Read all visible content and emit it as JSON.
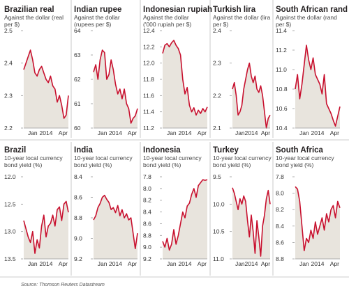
{
  "source": "Source: Thomson Reuters Datastream",
  "colors": {
    "line": "#c8102e",
    "fill": "#e8e4dd",
    "divider": "#bdbdbd",
    "tick": "#9a9a9a"
  },
  "chart_data": [
    {
      "type": "area",
      "title": "Brazilian real",
      "subtitle": [
        "Against the dollar (real",
        "per $)"
      ],
      "ylim": [
        2.5,
        2.2
      ],
      "yticks": [
        "2.2",
        "2.3",
        "2.4",
        "2.5"
      ],
      "ytick_values": [
        2.2,
        2.3,
        2.4,
        2.5
      ],
      "xticks": [
        "Jan",
        "2014",
        "Apr"
      ],
      "x": [
        0,
        0.05,
        0.1,
        0.15,
        0.2,
        0.25,
        0.3,
        0.35,
        0.4,
        0.45,
        0.5,
        0.55,
        0.6,
        0.65,
        0.7,
        0.75,
        0.8,
        0.85,
        0.9,
        0.95,
        1
      ],
      "values": [
        2.38,
        2.4,
        2.42,
        2.44,
        2.41,
        2.37,
        2.36,
        2.38,
        2.39,
        2.37,
        2.35,
        2.34,
        2.36,
        2.33,
        2.32,
        2.28,
        2.3,
        2.27,
        2.23,
        2.24,
        2.3
      ]
    },
    {
      "type": "area",
      "title": "Indian rupee",
      "subtitle": [
        "Against the dollar",
        "(rupees per $)"
      ],
      "ylim": [
        64,
        60
      ],
      "yticks": [
        "60",
        "61",
        "62",
        "63",
        "64"
      ],
      "ytick_values": [
        60,
        61,
        62,
        63,
        64
      ],
      "xticks": [
        "Jan",
        "2014",
        "Apr"
      ],
      "x": [
        0,
        0.05,
        0.1,
        0.15,
        0.2,
        0.25,
        0.3,
        0.35,
        0.4,
        0.45,
        0.5,
        0.55,
        0.6,
        0.65,
        0.7,
        0.75,
        0.8,
        0.85,
        0.9,
        0.95,
        1
      ],
      "values": [
        62.3,
        62.6,
        62.0,
        62.8,
        63.2,
        63.1,
        62.0,
        62.2,
        62.8,
        62.4,
        61.8,
        61.4,
        61.6,
        61.2,
        61.6,
        61.0,
        60.8,
        60.2,
        60.4,
        60.5,
        60.8
      ]
    },
    {
      "type": "area",
      "title": "Indonesian rupiah",
      "subtitle": [
        "Against the dollar",
        "('000 rupiah per $)"
      ],
      "ylim": [
        12.4,
        11.2
      ],
      "yticks": [
        "11.2",
        "11.4",
        "11.6",
        "11.8",
        "12.0",
        "12.2",
        "12.4"
      ],
      "ytick_values": [
        11.2,
        11.4,
        11.6,
        11.8,
        12.0,
        12.2,
        12.4
      ],
      "xticks": [
        "Jan",
        "2014",
        "Apr"
      ],
      "x": [
        0,
        0.05,
        0.1,
        0.15,
        0.2,
        0.25,
        0.3,
        0.35,
        0.4,
        0.45,
        0.5,
        0.55,
        0.6,
        0.65,
        0.7,
        0.75,
        0.8,
        0.85,
        0.9,
        0.95,
        1
      ],
      "values": [
        12.12,
        12.22,
        12.24,
        12.2,
        12.25,
        12.28,
        12.22,
        12.18,
        12.1,
        11.8,
        11.62,
        11.7,
        11.48,
        11.4,
        11.45,
        11.36,
        11.42,
        11.38,
        11.44,
        11.4,
        11.46
      ]
    },
    {
      "type": "area",
      "title": "Turkish lira",
      "subtitle": [
        "Against the dollar (lira",
        "per $)"
      ],
      "ylim": [
        2.4,
        2.1
      ],
      "yticks": [
        "2.1",
        "2.2",
        "2.3",
        "2.4"
      ],
      "ytick_values": [
        2.1,
        2.2,
        2.3,
        2.4
      ],
      "xticks": [
        "Jan",
        "2014",
        "Apr"
      ],
      "x": [
        0,
        0.05,
        0.1,
        0.15,
        0.2,
        0.25,
        0.3,
        0.35,
        0.4,
        0.45,
        0.5,
        0.55,
        0.6,
        0.65,
        0.7,
        0.75,
        0.8,
        0.85,
        0.9,
        0.95,
        1
      ],
      "values": [
        2.22,
        2.24,
        2.2,
        2.14,
        2.15,
        2.17,
        2.22,
        2.25,
        2.28,
        2.3,
        2.26,
        2.24,
        2.26,
        2.22,
        2.21,
        2.23,
        2.2,
        2.15,
        2.1,
        2.13,
        2.14
      ]
    },
    {
      "type": "area",
      "title": "South African rand",
      "subtitle": [
        "Against the dollar (rand",
        "per $)"
      ],
      "ylim": [
        11.4,
        10.4
      ],
      "yticks": [
        "10.4",
        "10.6",
        "10.8",
        "11.0",
        "11.2",
        "11.4"
      ],
      "ytick_values": [
        10.4,
        10.6,
        10.8,
        11.0,
        11.2,
        11.4
      ],
      "xticks": [
        "Jan",
        "2014",
        "Apr"
      ],
      "x": [
        0,
        0.05,
        0.1,
        0.15,
        0.2,
        0.25,
        0.3,
        0.35,
        0.4,
        0.45,
        0.5,
        0.55,
        0.6,
        0.65,
        0.7,
        0.75,
        0.8,
        0.85,
        0.9,
        0.95,
        1
      ],
      "values": [
        10.8,
        10.95,
        10.7,
        10.85,
        11.05,
        11.25,
        11.1,
        11.0,
        11.12,
        10.95,
        10.9,
        10.85,
        10.75,
        10.95,
        10.65,
        10.6,
        10.55,
        10.48,
        10.42,
        10.52,
        10.62
      ]
    },
    {
      "type": "area",
      "title": "Brazil",
      "subtitle": [
        "10-year local currency",
        "bond yield (%)"
      ],
      "ylim": [
        12.0,
        13.5
      ],
      "yticks": [
        "12.0",
        "12.5",
        "13.0",
        "13.5"
      ],
      "ytick_values": [
        12.0,
        12.5,
        13.0,
        13.5
      ],
      "xticks": [
        "Jan",
        "2014",
        "Apr"
      ],
      "x": [
        0,
        0.05,
        0.1,
        0.15,
        0.2,
        0.25,
        0.3,
        0.35,
        0.4,
        0.45,
        0.5,
        0.55,
        0.6,
        0.65,
        0.7,
        0.75,
        0.8,
        0.85,
        0.9,
        0.95,
        1
      ],
      "values": [
        12.8,
        12.95,
        13.1,
        13.2,
        13.0,
        13.4,
        13.15,
        13.3,
        12.9,
        12.7,
        13.1,
        12.9,
        12.85,
        12.7,
        12.9,
        12.6,
        12.55,
        12.8,
        12.5,
        12.45,
        12.65
      ]
    },
    {
      "type": "area",
      "title": "India",
      "subtitle": [
        "10-year local currency",
        "bond yield (%)"
      ],
      "ylim": [
        8.4,
        9.2
      ],
      "yticks": [
        "8.4",
        "8.6",
        "8.8",
        "9.0",
        "9.2"
      ],
      "ytick_values": [
        8.4,
        8.6,
        8.8,
        9.0,
        9.2
      ],
      "xticks": [
        "Jan",
        "2014",
        "Apr"
      ],
      "x": [
        0,
        0.05,
        0.1,
        0.15,
        0.2,
        0.25,
        0.3,
        0.35,
        0.4,
        0.45,
        0.5,
        0.55,
        0.6,
        0.65,
        0.7,
        0.75,
        0.8,
        0.85,
        0.9,
        0.95,
        1
      ],
      "values": [
        8.82,
        8.78,
        8.7,
        8.66,
        8.6,
        8.58,
        8.62,
        8.65,
        8.72,
        8.7,
        8.75,
        8.68,
        8.78,
        8.72,
        8.8,
        8.76,
        8.82,
        8.8,
        8.95,
        9.1,
        8.95
      ]
    },
    {
      "type": "area",
      "title": "Indonesia",
      "subtitle": [
        "10-year local currency",
        "bond yield (%)"
      ],
      "ylim": [
        7.8,
        9.2
      ],
      "yticks": [
        "7.8",
        "8.0",
        "8.2",
        "8.4",
        "8.6",
        "8.8",
        "9.0",
        "9.2"
      ],
      "ytick_values": [
        7.8,
        8.0,
        8.2,
        8.4,
        8.6,
        8.8,
        9.0,
        9.2
      ],
      "xticks": [
        "Jan",
        "2014",
        "Apr"
      ],
      "x": [
        0,
        0.05,
        0.1,
        0.15,
        0.2,
        0.25,
        0.3,
        0.35,
        0.4,
        0.45,
        0.5,
        0.55,
        0.6,
        0.65,
        0.7,
        0.75,
        0.8,
        0.85,
        0.9,
        0.95,
        1
      ],
      "values": [
        8.9,
        9.0,
        8.85,
        9.05,
        8.95,
        8.7,
        8.95,
        8.8,
        8.6,
        8.4,
        8.5,
        8.3,
        8.25,
        8.1,
        8.0,
        8.15,
        7.95,
        7.9,
        7.85,
        7.86,
        7.85
      ]
    },
    {
      "type": "area",
      "title": "Turkey",
      "subtitle": [
        "10-year local currency",
        "bond yield (%)"
      ],
      "ylim": [
        9.5,
        11.0
      ],
      "yticks": [
        "9.5",
        "10.0",
        "10.5",
        "11.0"
      ],
      "ytick_values": [
        9.5,
        10.0,
        10.5,
        11.0
      ],
      "xticks": [
        "Jan",
        "2014",
        "Apr"
      ],
      "x": [
        0,
        0.05,
        0.1,
        0.15,
        0.2,
        0.25,
        0.3,
        0.35,
        0.4,
        0.45,
        0.5,
        0.55,
        0.6,
        0.65,
        0.7,
        0.75,
        0.8,
        0.85,
        0.9,
        0.95,
        1
      ],
      "values": [
        9.7,
        9.8,
        9.95,
        10.1,
        9.9,
        10.0,
        9.85,
        9.95,
        10.3,
        10.6,
        10.2,
        10.5,
        10.9,
        10.3,
        10.6,
        10.95,
        10.4,
        10.2,
        9.9,
        9.75,
        10.0
      ]
    },
    {
      "type": "area",
      "title": "South Africa",
      "subtitle": [
        "10-year local currency",
        "bond yield (%)"
      ],
      "ylim": [
        7.8,
        8.8
      ],
      "yticks": [
        "7.8",
        "8.0",
        "8.2",
        "8.4",
        "8.6",
        "8.8"
      ],
      "ytick_values": [
        7.8,
        8.0,
        8.2,
        8.4,
        8.6,
        8.8
      ],
      "xticks": [
        "Jan",
        "2014",
        "Apr"
      ],
      "x": [
        0,
        0.05,
        0.1,
        0.15,
        0.2,
        0.25,
        0.3,
        0.35,
        0.4,
        0.45,
        0.5,
        0.55,
        0.6,
        0.65,
        0.7,
        0.75,
        0.8,
        0.85,
        0.9,
        0.95,
        1
      ],
      "values": [
        7.92,
        7.95,
        8.1,
        8.4,
        8.7,
        8.55,
        8.6,
        8.45,
        8.55,
        8.35,
        8.5,
        8.4,
        8.3,
        8.45,
        8.25,
        8.35,
        8.2,
        8.15,
        8.3,
        8.1,
        8.18
      ]
    }
  ]
}
